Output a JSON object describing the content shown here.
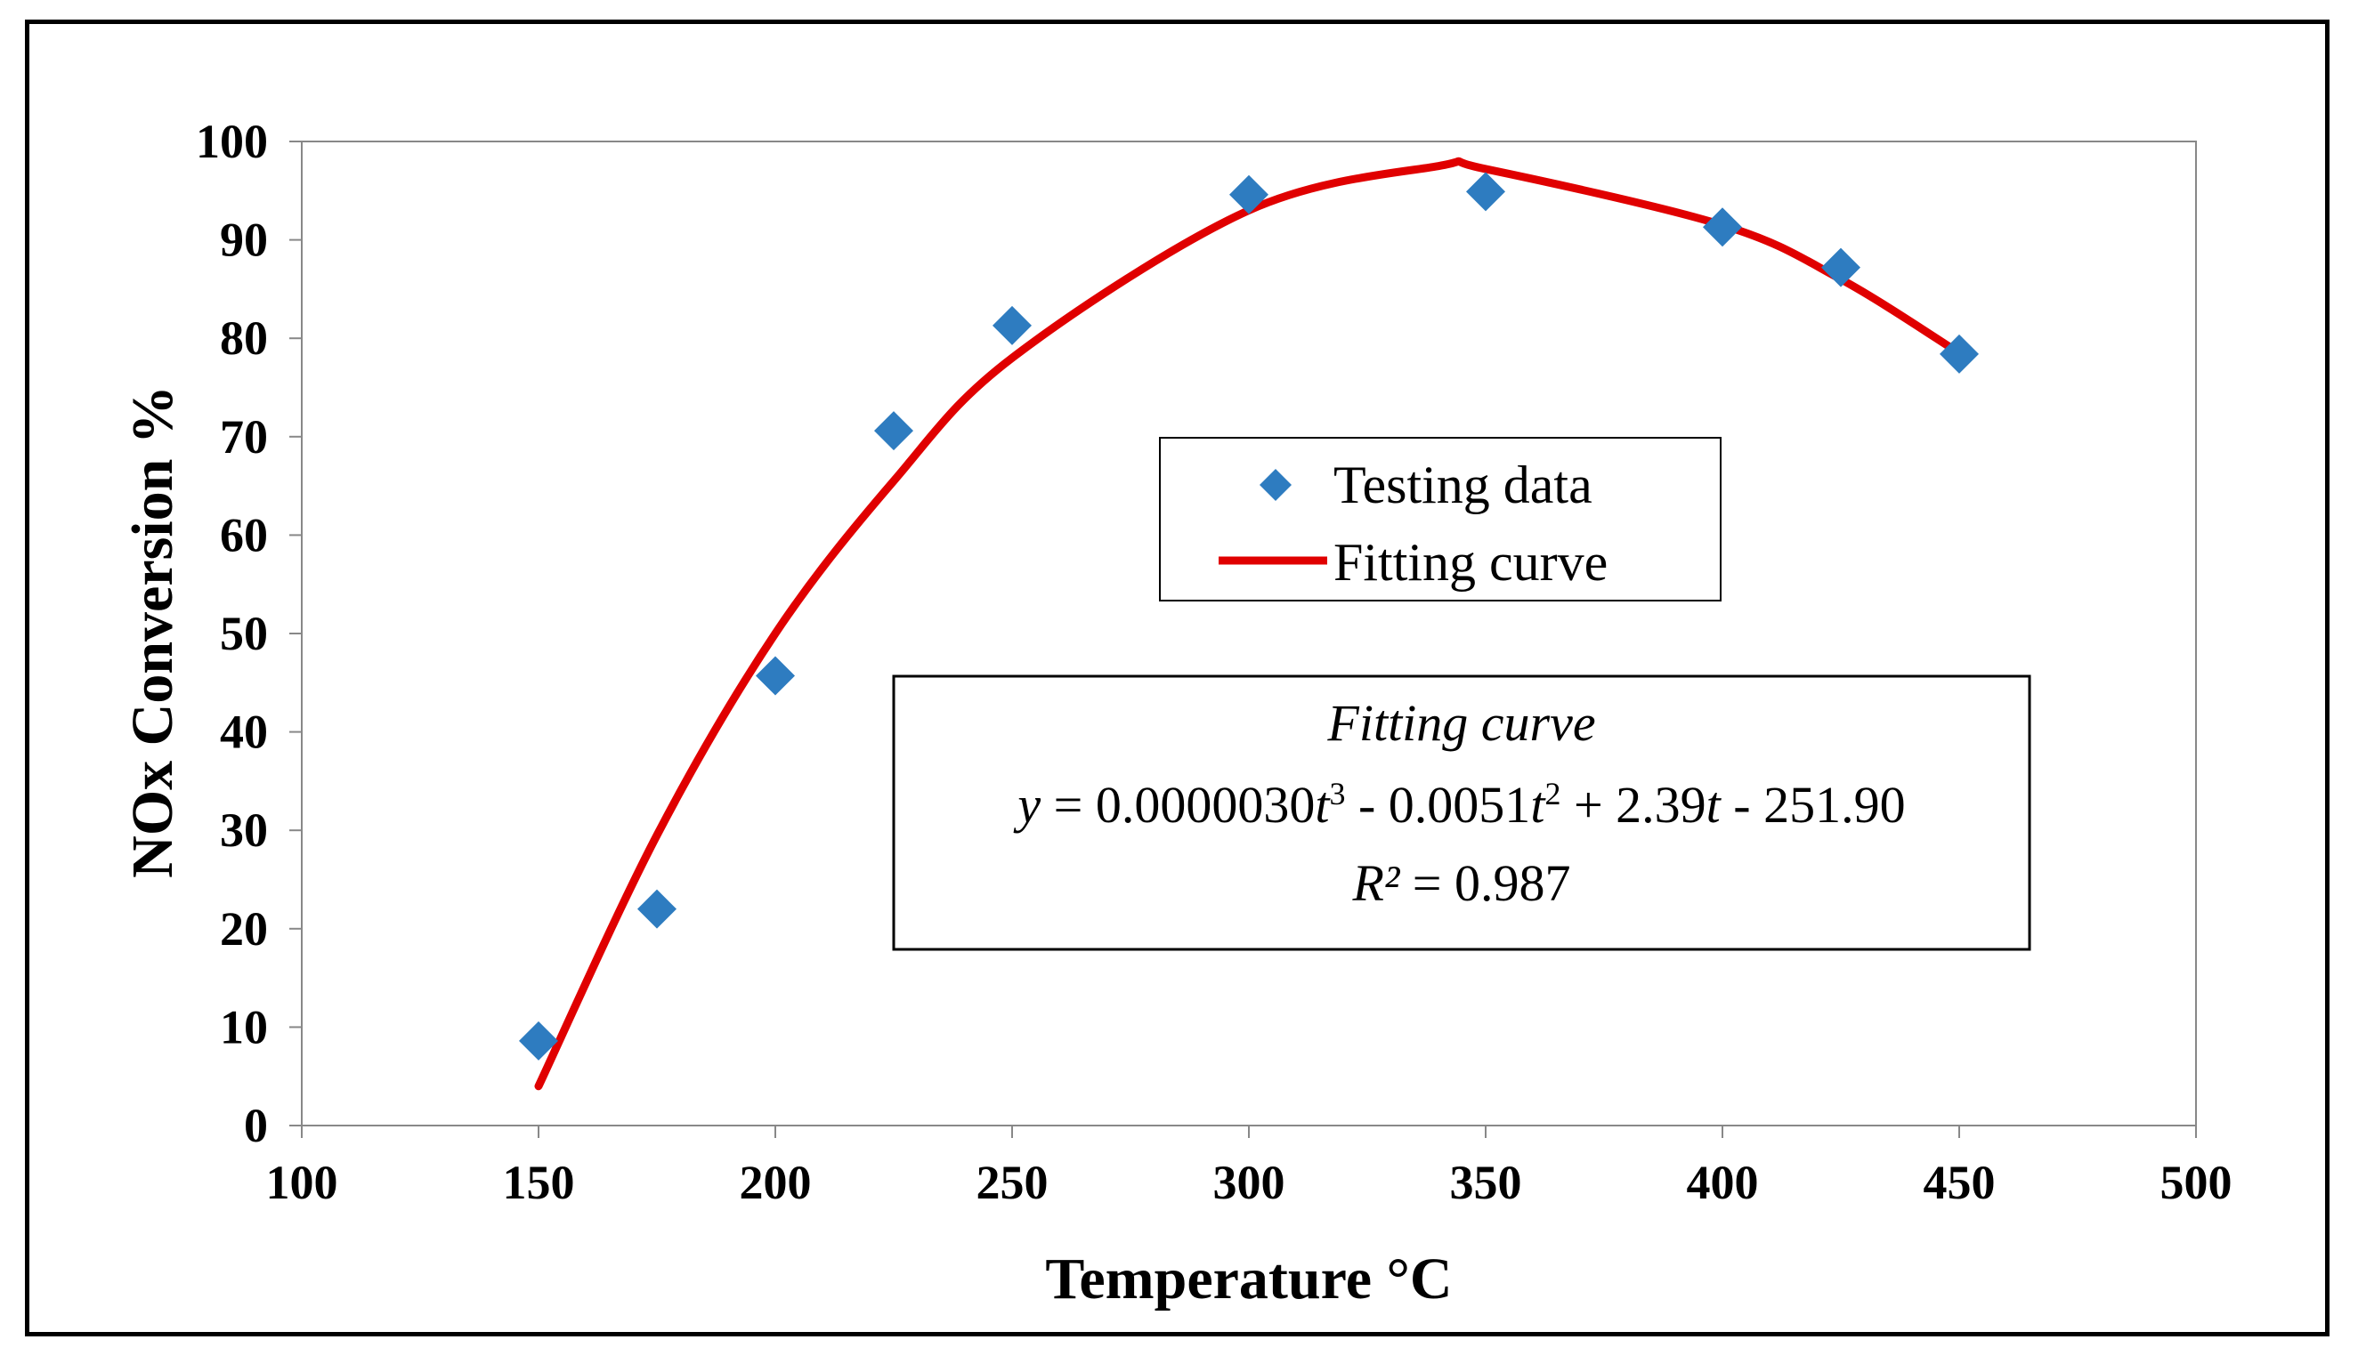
{
  "chart_data": {
    "type": "scatter",
    "xlabel": "Temperature °C",
    "ylabel": "NOx  Conversion  %",
    "xlim": [
      100,
      500
    ],
    "ylim": [
      0,
      100
    ],
    "x_ticks": [
      "100",
      "150",
      "200",
      "250",
      "300",
      "350",
      "400",
      "450",
      "500"
    ],
    "y_ticks": [
      "0",
      "10",
      "20",
      "30",
      "40",
      "50",
      "60",
      "70",
      "80",
      "90",
      "100"
    ],
    "grid": false,
    "legend_position": "center",
    "series": [
      {
        "name": "Testing data",
        "kind": "scatter",
        "marker": "diamond",
        "color": "#2E7CC0",
        "x": [
          150,
          175,
          200,
          225,
          250,
          300,
          350,
          400,
          425,
          450
        ],
        "y": [
          8.6,
          22.0,
          45.7,
          70.6,
          81.3,
          94.6,
          94.9,
          91.3,
          87.2,
          78.4
        ]
      },
      {
        "name": "Fitting curve",
        "kind": "line",
        "color": "#E00000",
        "x_range": [
          150,
          450
        ],
        "coefficients": {
          "a3": 3e-06,
          "a2": -0.0051,
          "a1": 2.39,
          "a0": -251.9
        },
        "peak": {
          "x": 340,
          "y": 97.5
        },
        "endpoints": {
          "start": [
            150,
            4.0
          ],
          "end": [
            450,
            78.5
          ]
        }
      }
    ],
    "equation_box": {
      "title": "Fitting curve",
      "y_var": "y",
      "eq_a": " = 0.0000030",
      "eq_b": "  - 0.0051",
      "eq_c": " + 2.39",
      "eq_d": " - 251.90",
      "t_var": "t",
      "sup3": "3",
      "sup2": "2",
      "r2_label": "R²",
      "r2_rest": " = 0.987"
    }
  }
}
